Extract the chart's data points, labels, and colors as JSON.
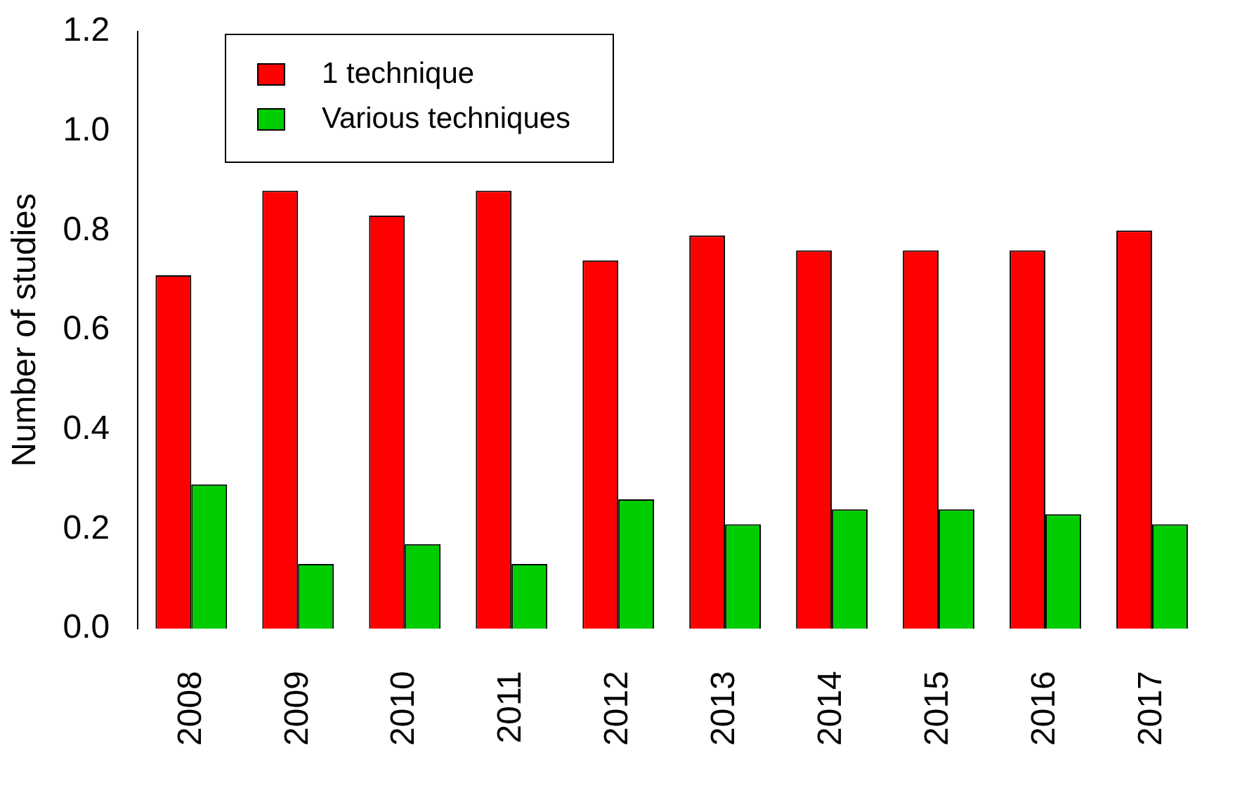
{
  "chart_data": {
    "type": "bar",
    "ylabel": "Number of studies",
    "categories": [
      "2008",
      "2009",
      "2010",
      "2011",
      "2012",
      "2013",
      "2014",
      "2015",
      "2016",
      "2017"
    ],
    "series": [
      {
        "name": "1 technique",
        "color": "#ff0000",
        "values": [
          0.71,
          0.88,
          0.83,
          0.88,
          0.74,
          0.79,
          0.76,
          0.76,
          0.76,
          0.8
        ]
      },
      {
        "name": "Various techniques",
        "color": "#00cd00",
        "values": [
          0.29,
          0.13,
          0.17,
          0.13,
          0.26,
          0.21,
          0.24,
          0.24,
          0.23,
          0.21
        ]
      }
    ],
    "ylim": [
      0,
      1.2
    ],
    "yticks": [
      {
        "value": 0,
        "label": "0.0"
      },
      {
        "value": 0.2,
        "label": "0.2"
      },
      {
        "value": 0.4,
        "label": "0.4"
      },
      {
        "value": 0.6,
        "label": "0.6"
      },
      {
        "value": 0.8,
        "label": "0.8"
      },
      {
        "value": 1,
        "label": "1.0"
      },
      {
        "value": 1.2,
        "label": "1.2"
      }
    ],
    "grid": false,
    "legend": "top left"
  }
}
